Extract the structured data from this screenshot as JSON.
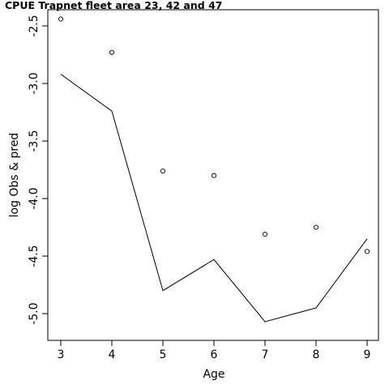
{
  "chart_data": {
    "type": "line",
    "title": "CPUE Trapnet fleet area 23, 42 and 47",
    "xlabel": "Age",
    "ylabel": "log Obs & pred",
    "x": [
      3,
      4,
      5,
      6,
      7,
      8,
      9
    ],
    "xlim": [
      3,
      9
    ],
    "ylim": [
      -5.0,
      -2.5
    ],
    "xticks": [
      "3",
      "4",
      "5",
      "6",
      "7",
      "8",
      "9"
    ],
    "yticks": [
      "-2.5",
      "-3.0",
      "-3.5",
      "-4.0",
      "-4.5",
      "-5.0"
    ],
    "series": [
      {
        "kind": "points",
        "marker": "open-circle",
        "values": [
          -2.44,
          -2.73,
          -3.76,
          -3.8,
          -4.31,
          -4.25,
          -4.46
        ]
      },
      {
        "kind": "line",
        "values": [
          -2.92,
          -3.24,
          -4.8,
          -4.53,
          -5.07,
          -4.95,
          -4.35
        ]
      }
    ],
    "grid": false,
    "legend": "none"
  }
}
